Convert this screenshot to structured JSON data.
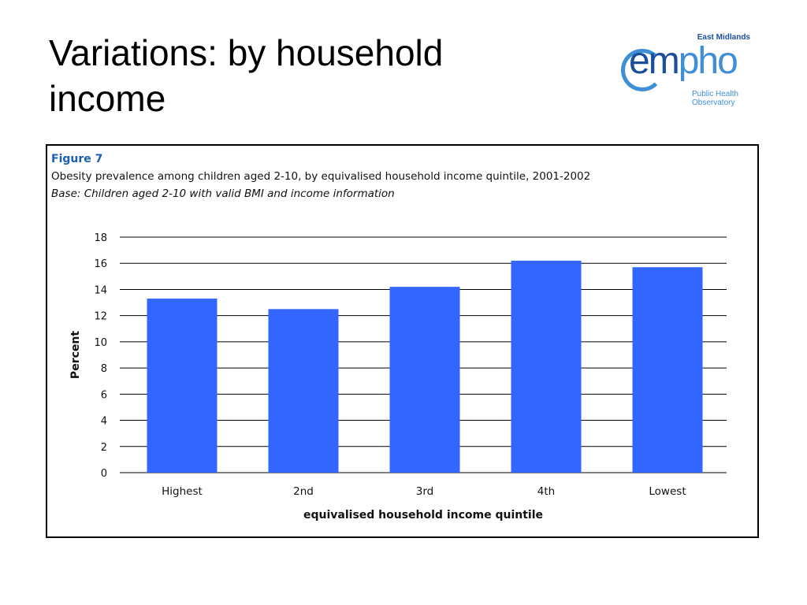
{
  "slide": {
    "title": "Variations: by household income"
  },
  "logo": {
    "region": "East Midlands",
    "wordmark_em": "em",
    "wordmark_pho": "pho",
    "tagline_line1": "Public Health",
    "tagline_line2": "Observatory"
  },
  "figure": {
    "label": "Figure 7",
    "base_note": "Base: Children aged 2-10 with valid BMI and income information"
  },
  "colors": {
    "bar": "#3366ff",
    "grid": "#000000",
    "figure_label": "#1a5fb4",
    "logo_dark": "#1a4f9c",
    "logo_light": "#3f8fd6"
  },
  "chart_data": {
    "type": "bar",
    "title": "Obesity prevalence among children aged 2-10, by equivalised household income quintile, 2001-2002",
    "xlabel": "equivalised household income quintile",
    "ylabel": "Percent",
    "categories": [
      "Highest",
      "2nd",
      "3rd",
      "4th",
      "Lowest"
    ],
    "values": [
      13.3,
      12.5,
      14.2,
      16.2,
      15.7
    ],
    "ylim": [
      0,
      18
    ],
    "yticks": [
      0,
      2,
      4,
      6,
      8,
      10,
      12,
      14,
      16,
      18
    ],
    "grid": true,
    "legend": "none"
  }
}
